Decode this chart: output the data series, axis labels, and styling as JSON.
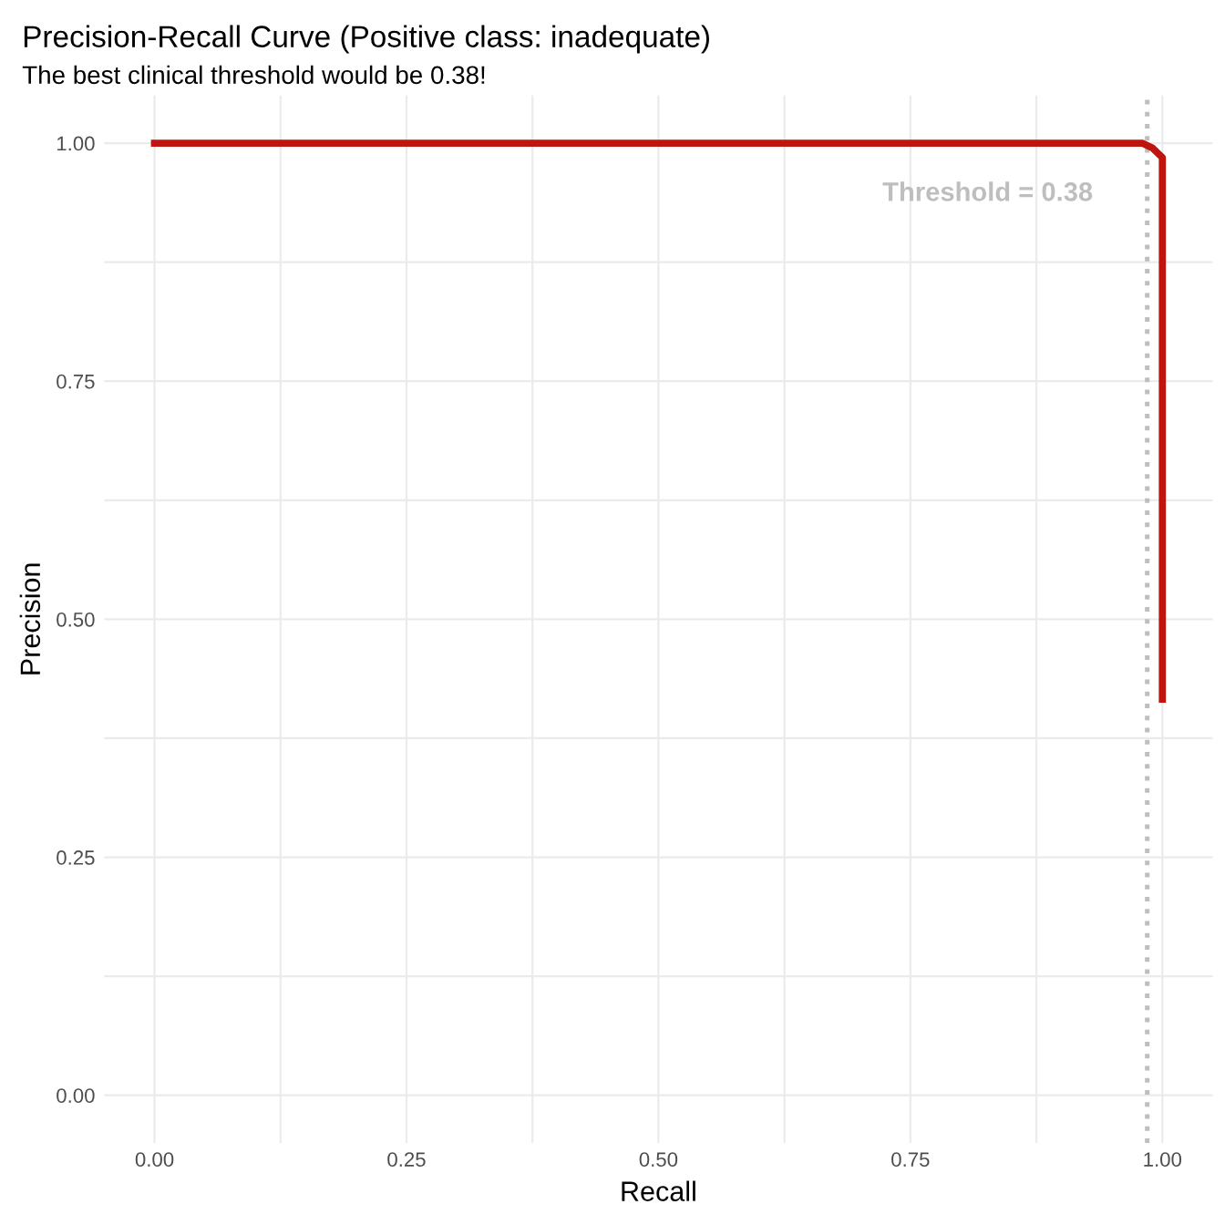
{
  "chart_data": {
    "type": "line",
    "title": "Precision-Recall Curve (Positive class: inadequate)",
    "subtitle": "The best clinical threshold would be 0.38!",
    "xlabel": "Recall",
    "ylabel": "Precision",
    "series": [
      {
        "color": "#c0140f",
        "x": [
          0,
          0.98,
          0.99,
          1.0,
          1.0
        ],
        "values": [
          1.0,
          1.0,
          0.995,
          0.985,
          0.416
        ]
      }
    ],
    "xlim": [
      -0.05,
      1.05
    ],
    "ylim": [
      -0.05,
      1.05
    ],
    "xticks": [
      {
        "value": 0,
        "label": "0.00"
      },
      {
        "value": 0.125,
        "label": null
      },
      {
        "value": 0.25,
        "label": "0.25"
      },
      {
        "value": 0.375,
        "label": null
      },
      {
        "value": 0.5,
        "label": "0.50"
      },
      {
        "value": 0.625,
        "label": null
      },
      {
        "value": 0.75,
        "label": "0.75"
      },
      {
        "value": 0.875,
        "label": null
      },
      {
        "value": 1,
        "label": "1.00"
      }
    ],
    "yticks": [
      {
        "value": 0,
        "label": "0.00"
      },
      {
        "value": 0.125,
        "label": null
      },
      {
        "value": 0.25,
        "label": "0.25"
      },
      {
        "value": 0.375,
        "label": null
      },
      {
        "value": 0.5,
        "label": "0.50"
      },
      {
        "value": 0.625,
        "label": null
      },
      {
        "value": 0.75,
        "label": "0.75"
      },
      {
        "value": 0.875,
        "label": null
      },
      {
        "value": 1,
        "label": "1.00"
      }
    ],
    "ref_lines": [
      {
        "axis": "x",
        "value": 0.985,
        "color": "#bebebe",
        "line_style": "dotted"
      }
    ],
    "annotations": [
      "Threshold = 0.38"
    ],
    "grid": true
  }
}
